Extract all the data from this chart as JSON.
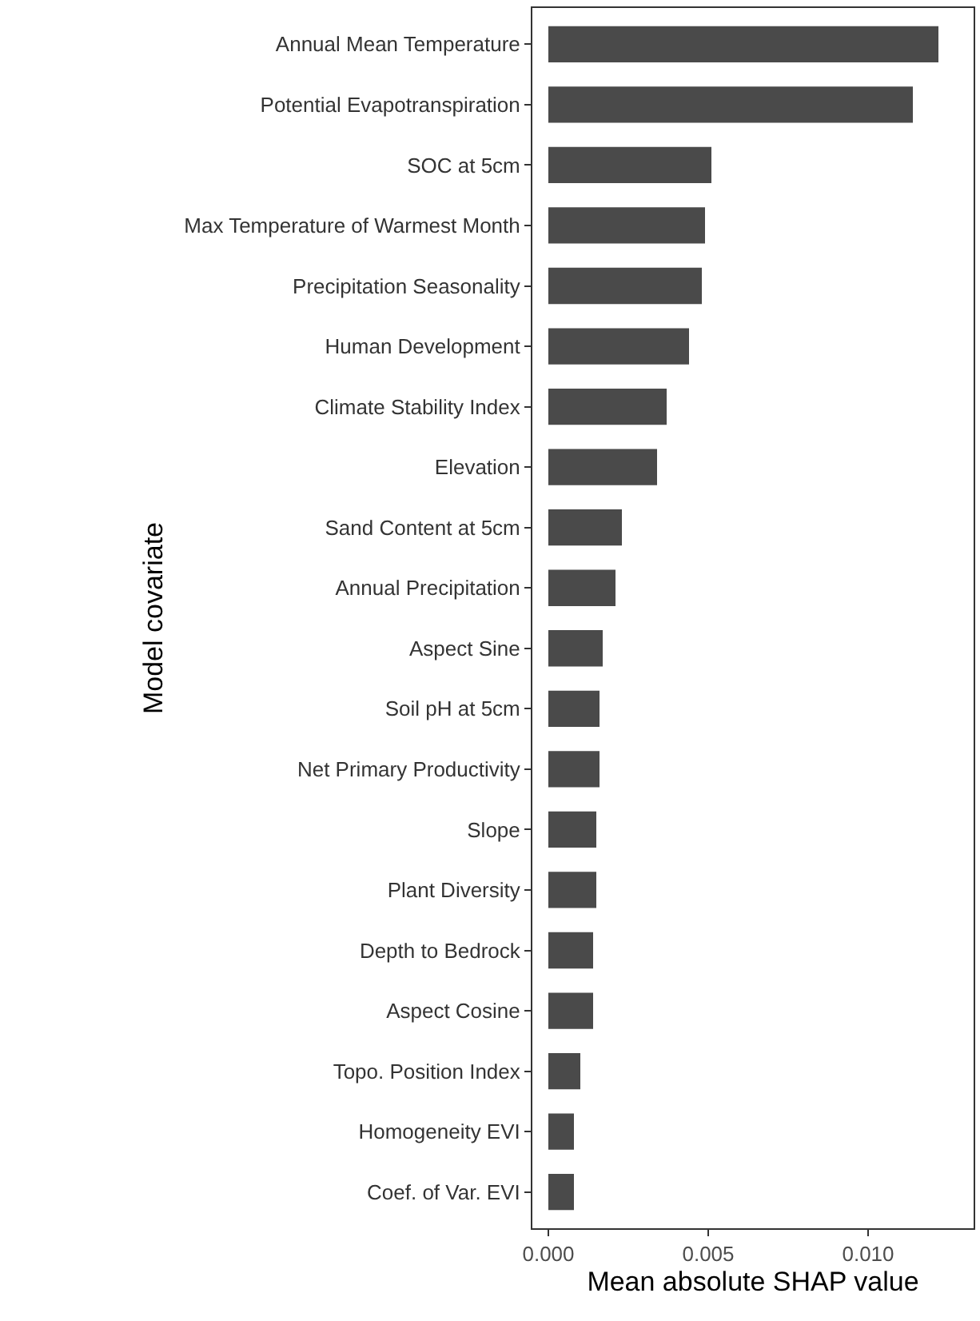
{
  "chart_data": {
    "type": "bar",
    "orientation": "horizontal",
    "xlabel": "Mean absolute SHAP value",
    "ylabel": "Model covariate",
    "categories": [
      "Annual Mean Temperature",
      "Potential Evapotranspiration",
      "SOC at 5cm",
      "Max Temperature of Warmest Month",
      "Precipitation Seasonality",
      "Human Development",
      "Climate Stability Index",
      "Elevation",
      "Sand Content at 5cm",
      "Annual Precipitation",
      "Aspect Sine",
      "Soil pH at 5cm",
      "Net Primary Productivity",
      "Slope",
      "Plant Diversity",
      "Depth to Bedrock",
      "Aspect Cosine",
      "Topo. Position Index",
      "Homogeneity EVI",
      "Coef. of Var. EVI"
    ],
    "values": [
      0.0122,
      0.0114,
      0.0051,
      0.0049,
      0.0048,
      0.0044,
      0.0037,
      0.0034,
      0.0023,
      0.0021,
      0.0017,
      0.0016,
      0.0016,
      0.0015,
      0.0015,
      0.0014,
      0.0014,
      0.001,
      0.0008,
      0.0008
    ],
    "color": "#4a4a4a",
    "xlim": [
      -0.0005,
      0.0133
    ],
    "xticks": [
      {
        "value": 0,
        "label": "0.000"
      },
      {
        "value": 0.005,
        "label": "0.005"
      },
      {
        "value": 0.01,
        "label": "0.010"
      }
    ],
    "grid": false
  }
}
